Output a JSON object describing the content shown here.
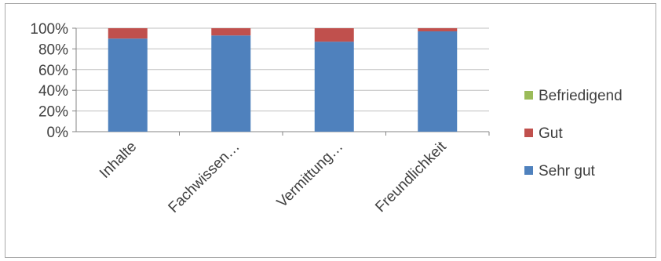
{
  "chart_data": {
    "type": "bar",
    "stacked": true,
    "percent_stacked": true,
    "categories": [
      "Inhalte",
      "Fachwissen…",
      "Vermittung…",
      "Freundlichkeit"
    ],
    "series": [
      {
        "name": "Sehr gut",
        "values": [
          90,
          93,
          87,
          97
        ],
        "color": "#4F81BD"
      },
      {
        "name": "Gut",
        "values": [
          10,
          7,
          13,
          3
        ],
        "color": "#C0504D"
      },
      {
        "name": "Befriedigend",
        "values": [
          0,
          0,
          0,
          0
        ],
        "color": "#9BBB59"
      }
    ],
    "y_ticks": [
      "0%",
      "20%",
      "40%",
      "60%",
      "80%",
      "100%"
    ],
    "ylim": [
      0,
      100
    ],
    "grid": true,
    "legend_position": "right"
  }
}
